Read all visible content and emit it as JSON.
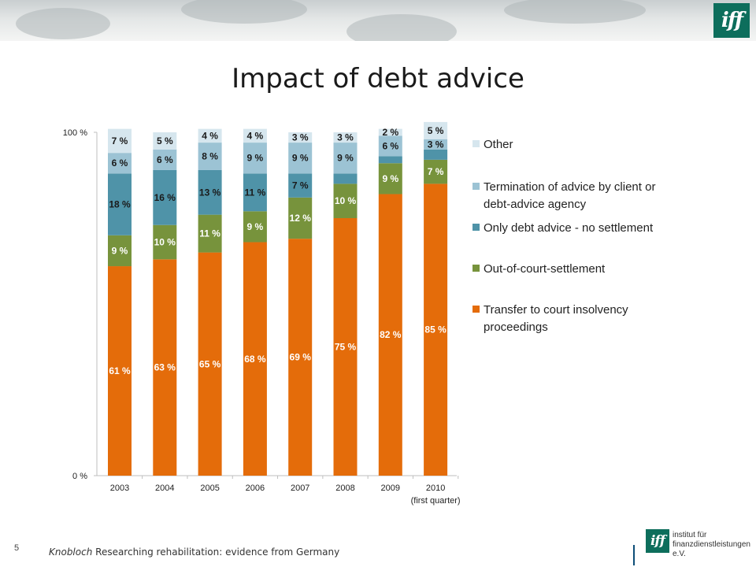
{
  "slide": {
    "title": "Impact of debt advice",
    "page_number": "5",
    "footer_author": "Knobloch",
    "footer_text": "Researching rehabilitation:  evidence from Germany",
    "logo_text": "iff",
    "footer_logo_line1": "institut für",
    "footer_logo_line2": "finanzdienstleistungen e.V."
  },
  "colors": {
    "orange": "#e46c0a",
    "green": "#77933c",
    "teal": "#4f93a8",
    "lightblue": "#9cc3d4",
    "palest": "#d6e6ee"
  },
  "chart_data": {
    "type": "bar",
    "stacked": true,
    "categories": [
      "2003",
      "2004",
      "2005",
      "2006",
      "2007",
      "2008",
      "2009",
      "2010"
    ],
    "category_note": "(first quarter)",
    "y_ticks": [
      "0 %",
      "100 %"
    ],
    "ylim": [
      0,
      100
    ],
    "series": [
      {
        "name": "Transfer to court insolvency proceedings",
        "color": "#e46c0a",
        "label_color": "#ffffff",
        "values": [
          61,
          63,
          65,
          68,
          69,
          75,
          82,
          85
        ],
        "labels": [
          "61 %",
          "63 %",
          "65 %",
          "68 %",
          "69 %",
          "75 %",
          "82 %",
          "85 %"
        ]
      },
      {
        "name": "Out-of-court-settlement",
        "color": "#77933c",
        "label_color": "#ffffff",
        "values": [
          9,
          10,
          11,
          9,
          12,
          10,
          9,
          7
        ],
        "labels": [
          "9 %",
          "10 %",
          "11 %",
          "9 %",
          "12 %",
          "10 %",
          "9 %",
          "7 %"
        ]
      },
      {
        "name": "Only debt advice - no settlement",
        "color": "#4f93a8",
        "label_color": "#1a1a1a",
        "values": [
          18,
          16,
          13,
          11,
          7,
          3,
          2,
          3
        ],
        "labels": [
          "18 %",
          "16 %",
          "13 %",
          "11 %",
          "7 %",
          "",
          "",
          ""
        ]
      },
      {
        "name": "Termination of advice  by client or debt-advice agency",
        "color": "#9cc3d4",
        "label_color": "#1a1a1a",
        "values": [
          6,
          6,
          8,
          9,
          9,
          9,
          6,
          3
        ],
        "labels": [
          "6 %",
          "6 %",
          "8 %",
          "9 %",
          "9 %",
          "9 %",
          "6 %",
          "3 %"
        ]
      },
      {
        "name": "Other",
        "color": "#d6e6ee",
        "label_color": "#1a1a1a",
        "values": [
          7,
          5,
          4,
          4,
          3,
          3,
          2,
          5
        ],
        "labels": [
          "7 %",
          "5 %",
          "4 %",
          "4 %",
          "3 %",
          "3 %",
          "2 %",
          "5 %"
        ]
      }
    ],
    "legend": {
      "position": "right",
      "order": [
        "Other",
        "Termination of advice  by client or debt-advice agency",
        "Only debt advice - no settlement",
        "Out-of-court-settlement",
        "Transfer to court insolvency proceedings"
      ],
      "lines": [
        [
          "Other"
        ],
        [
          "Termination of advice  by client or",
          "debt-advice agency"
        ],
        [
          "Only debt advice - no settlement"
        ],
        [
          "Out-of-court-settlement"
        ],
        [
          "Transfer to court insolvency",
          "proceedings"
        ]
      ]
    }
  }
}
